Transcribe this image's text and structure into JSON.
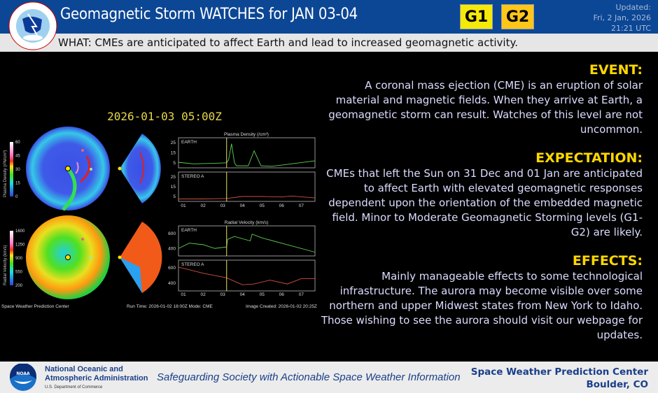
{
  "header": {
    "title": "Geomagnetic Storm WATCHES for JAN 03-04",
    "logo_text": "NATIONAL WEATHER SERVICE",
    "badges": [
      {
        "label": "G1",
        "color": "#f5e90a"
      },
      {
        "label": "G2",
        "color": "#ffc61a"
      }
    ],
    "updated_label": "Updated:",
    "updated_date": "Fri, 2 Jan, 2026",
    "updated_time": "21:21 UTC"
  },
  "what": "WHAT: CMEs are anticipated to affect Earth and lead to increased geomagnetic activity.",
  "model": {
    "timestamp": "2026-01-03 05:00Z",
    "density_title": "Plasma Density (/cm³)",
    "density_cbar_label": "Plasma Density (r²N/cm³)",
    "density_cbar_ticks": [
      "60",
      "45",
      "30",
      "15",
      "0"
    ],
    "velocity_title": "Radial Velocity (km/s)",
    "velocity_cbar_label": "Radial Velocity (km/s)",
    "velocity_cbar_ticks": [
      "1600",
      "1250",
      "900",
      "550",
      "200"
    ],
    "panel_earth": "EARTH",
    "panel_stereo": "STEREO A",
    "density_yticks": [
      "25",
      "15",
      "5"
    ],
    "velocity_yticks": [
      "600",
      "400"
    ],
    "xticks": [
      "01",
      "02",
      "03",
      "04",
      "05",
      "06",
      "07"
    ],
    "credit": "Space Weather Prediction Center",
    "run_time": "Run Time: 2026-01-02 18:00Z  Mode: CME",
    "image_created": "Image Created: 2026-01-02 20:25Z",
    "series": {
      "earth_density": [
        [
          0.75,
          5.5
        ],
        [
          1.5,
          4
        ],
        [
          2.5,
          4.5
        ],
        [
          3.2,
          5
        ],
        [
          3.3,
          8
        ],
        [
          3.45,
          24
        ],
        [
          3.6,
          5
        ],
        [
          3.7,
          2
        ],
        [
          4.3,
          2
        ],
        [
          4.6,
          17
        ],
        [
          4.95,
          2
        ],
        [
          5.5,
          1.5
        ],
        [
          6.5,
          4
        ],
        [
          7.7,
          7
        ]
      ],
      "stereo_density": [
        [
          0.75,
          2.5
        ],
        [
          2,
          2.5
        ],
        [
          3.2,
          3
        ],
        [
          4,
          5
        ],
        [
          5,
          5
        ],
        [
          6,
          4.5
        ],
        [
          6.5,
          5.5
        ],
        [
          7.7,
          3.5
        ]
      ],
      "earth_velocity": [
        [
          0.75,
          400
        ],
        [
          1.3,
          470
        ],
        [
          2,
          450
        ],
        [
          2.6,
          400
        ],
        [
          3.2,
          420
        ],
        [
          3.25,
          520
        ],
        [
          3.6,
          560
        ],
        [
          4.4,
          500
        ],
        [
          4.5,
          590
        ],
        [
          5,
          540
        ],
        [
          7.7,
          350
        ]
      ],
      "stereo_velocity": [
        [
          0.75,
          610
        ],
        [
          2,
          530
        ],
        [
          3.2,
          470
        ],
        [
          4,
          380
        ],
        [
          4.6,
          390
        ],
        [
          5.4,
          440
        ],
        [
          6.3,
          390
        ],
        [
          7,
          460
        ],
        [
          7.7,
          460
        ]
      ]
    },
    "current_day": 3.2
  },
  "sections": [
    {
      "heading": "EVENT:",
      "body": "A coronal mass ejection (CME) is an eruption of solar material and magnetic fields. When they arrive at Earth, a geomagnetic storm can result. Watches of this level are not uncommon."
    },
    {
      "heading": "EXPECTATION:",
      "body": "CMEs that left the Sun on 31 Dec and 01 Jan are anticipated to affect Earth with elevated geomagnetic responses dependent upon the orientation of the embedded magnetic field.  Minor to Moderate Geomagnetic Storming  levels (G1-G2) are likely."
    },
    {
      "heading": "EFFECTS:",
      "body": "Mainly manageable effects to some technological infrastructure. The aurora may become visible over some northern and upper Midwest states from New York to Idaho. Those wishing to see the aurora should visit our webpage for updates."
    }
  ],
  "footer": {
    "noaa_logo_text": "NOAA",
    "org_line1": "National Oceanic and",
    "org_line2": "Atmospheric Administration",
    "dept": "U.S. Department of Commerce",
    "slogan": "Safeguarding Society with Actionable Space Weather Information",
    "center": "Space Weather Prediction Center",
    "location": "Boulder, CO"
  }
}
